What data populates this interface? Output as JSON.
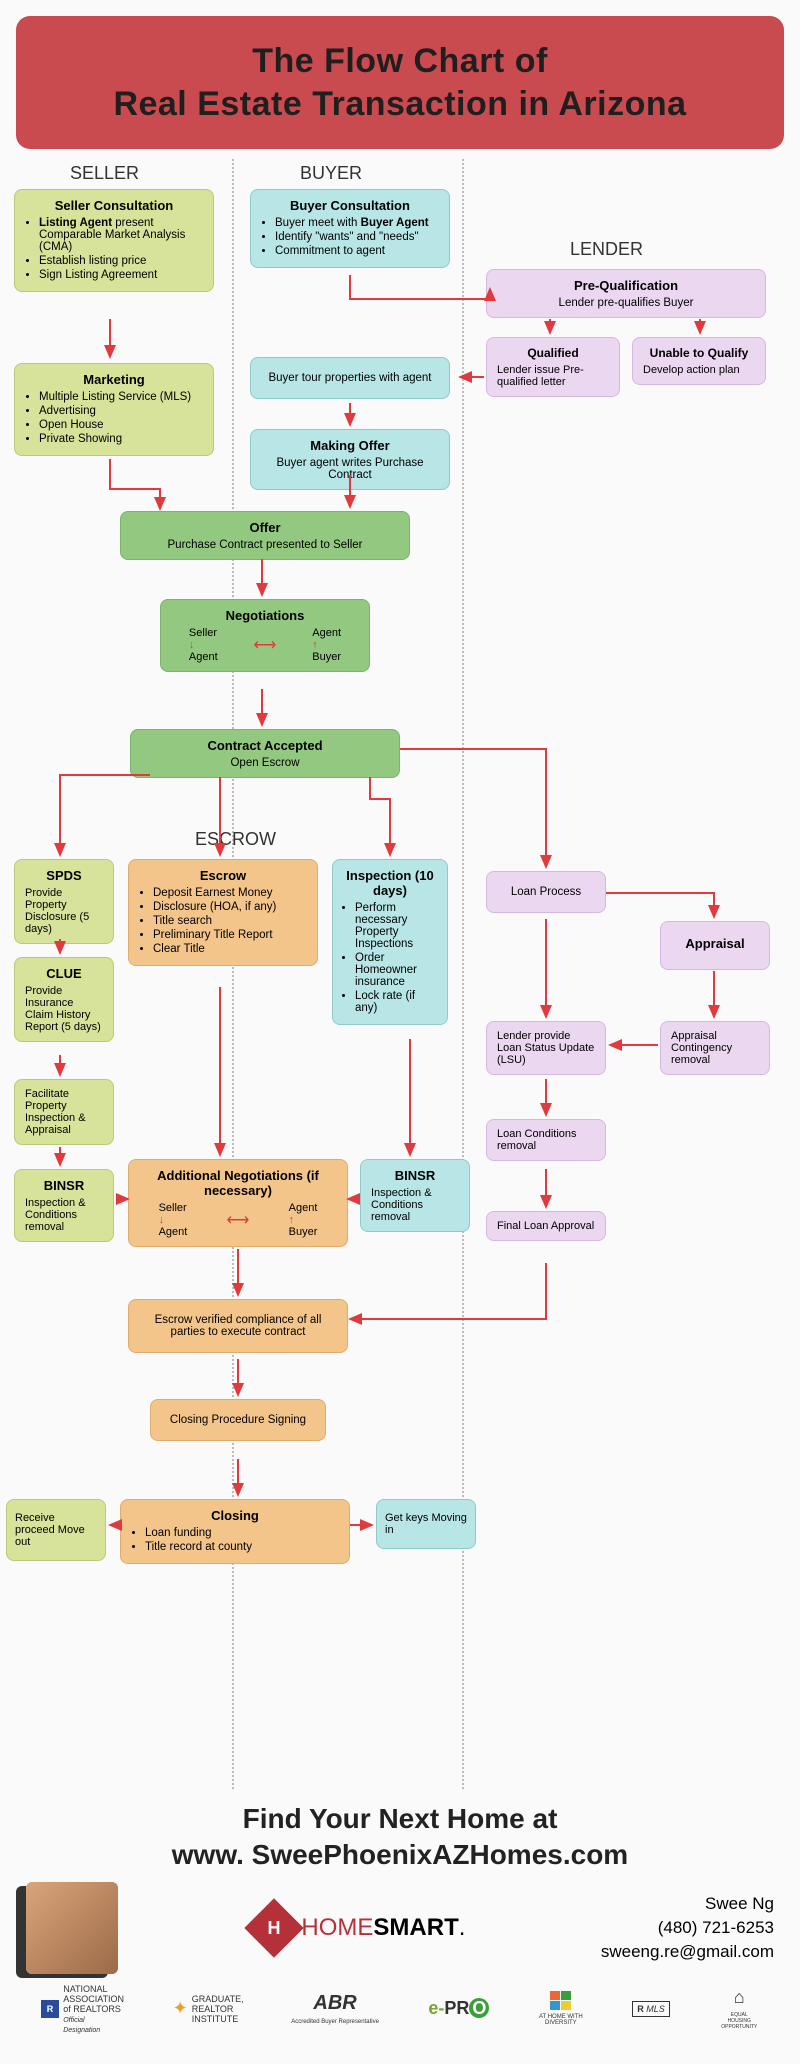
{
  "colors": {
    "header_bg": "#c94a4f",
    "green": "#d7e29a",
    "darkgreen": "#92c87f",
    "teal": "#b8e5e5",
    "pink": "#ebd7f0",
    "orange": "#f4c58a",
    "arrow": "#e03a3f",
    "divider": "#bbbbbb",
    "text": "#222222",
    "bg": "#fafafa"
  },
  "header": {
    "line1": "The Flow Chart of",
    "line2": "Real Estate Transaction in Arizona"
  },
  "col_labels": {
    "seller": "SELLER",
    "buyer": "BUYER",
    "lender": "LENDER",
    "escrow": "ESCROW"
  },
  "nodes": {
    "seller_consult": {
      "title": "Seller Consultation",
      "items": [
        "<b>Listing Agent</b> present Comparable Market Analysis (CMA)",
        "Establish listing price",
        "Sign Listing Agreement"
      ]
    },
    "marketing": {
      "title": "Marketing",
      "items": [
        "Multiple Listing Service (MLS)",
        "Advertising",
        "Open House",
        "Private Showing"
      ]
    },
    "buyer_consult": {
      "title": "Buyer Consultation",
      "items": [
        "Buyer meet with <b>Buyer Agent</b>",
        "Identify \"wants\" and \"needs\"",
        "Commitment to agent"
      ]
    },
    "prequal": {
      "title": "Pre-Qualification",
      "sub": "Lender pre-qualifies Buyer"
    },
    "qualified": {
      "title": "Qualified",
      "sub": "Lender issue Pre-qualified letter"
    },
    "unable": {
      "title": "Unable to Qualify",
      "sub": "Develop action plan"
    },
    "tour": {
      "sub": "Buyer tour properties with agent"
    },
    "making_offer": {
      "title": "Making Offer",
      "sub": "Buyer agent writes Purchase Contract"
    },
    "offer": {
      "title": "Offer",
      "sub": "Purchase Contract presented to Seller"
    },
    "negotiations": {
      "title": "Negotiations",
      "labels": {
        "seller": "Seller",
        "buyer": "Buyer",
        "agent": "Agent"
      }
    },
    "accepted": {
      "title": "Contract Accepted",
      "sub": "Open Escrow"
    },
    "spds": {
      "title": "SPDS",
      "sub": "Provide Property Disclosure (5 days)"
    },
    "clue": {
      "title": "CLUE",
      "sub": "Provide Insurance Claim History Report (5 days)"
    },
    "facilitate": {
      "sub": "Facilitate Property Inspection & Appraisal"
    },
    "binsr_s": {
      "title": "BINSR",
      "sub": "Inspection & Conditions removal"
    },
    "escrow": {
      "title": "Escrow",
      "items": [
        "Deposit Earnest Money",
        "Disclosure (HOA, if any)",
        "Title search",
        "Preliminary Title Report",
        "Clear Title"
      ]
    },
    "addl_neg": {
      "title": "Additional Negotiations (if necessary)",
      "labels": {
        "seller": "Seller",
        "buyer": "Buyer",
        "agent": "Agent"
      }
    },
    "verified": {
      "sub": "Escrow verified compliance of all parties to execute contract"
    },
    "closing_proc": {
      "sub": "Closing Procedure Signing"
    },
    "closing": {
      "title": "Closing",
      "items": [
        "Loan funding",
        "Title record at county"
      ]
    },
    "inspection": {
      "title": "Inspection (10 days)",
      "items": [
        "Perform necessary Property Inspections",
        "Order Homeowner insurance",
        "Lock rate (if any)"
      ]
    },
    "binsr_b": {
      "title": "BINSR",
      "sub": "Inspection & Conditions removal"
    },
    "loan_process": {
      "sub": "Loan Process"
    },
    "appraisal": {
      "title": "Appraisal"
    },
    "lsu": {
      "sub": "Lender provide Loan Status Update (LSU)"
    },
    "apr_cont": {
      "sub": "Appraisal Contingency removal"
    },
    "loan_cond": {
      "sub": "Loan Conditions removal"
    },
    "final_loan": {
      "sub": "Final Loan Approval"
    },
    "receive": {
      "sub": "Receive proceed Move out"
    },
    "getkeys": {
      "sub": "Get keys Moving in"
    }
  },
  "footer": {
    "line1": "Find Your Next Home at",
    "line2": "www. SweePhoenixAZHomes.com"
  },
  "contact": {
    "name": "Swee Ng",
    "phone": "(480) 721-6253",
    "email": "sweeng.re@gmail.com",
    "brand_pre": "HOME",
    "brand_post": "SMART",
    "brand_dot": "."
  },
  "badges": {
    "nar": "NATIONAL ASSOCIATION of REALTORS",
    "nar_sub": "Official Designation",
    "gri": "GRADUATE, REALTOR INSTITUTE",
    "abr": "ABR",
    "abr_sub": "Accredited Buyer Representative",
    "epro": "e-PRO",
    "div": "AT HOME WITH DIVERSITY",
    "mls": "MLS",
    "eho": "EQUAL HOUSING OPPORTUNITY"
  }
}
